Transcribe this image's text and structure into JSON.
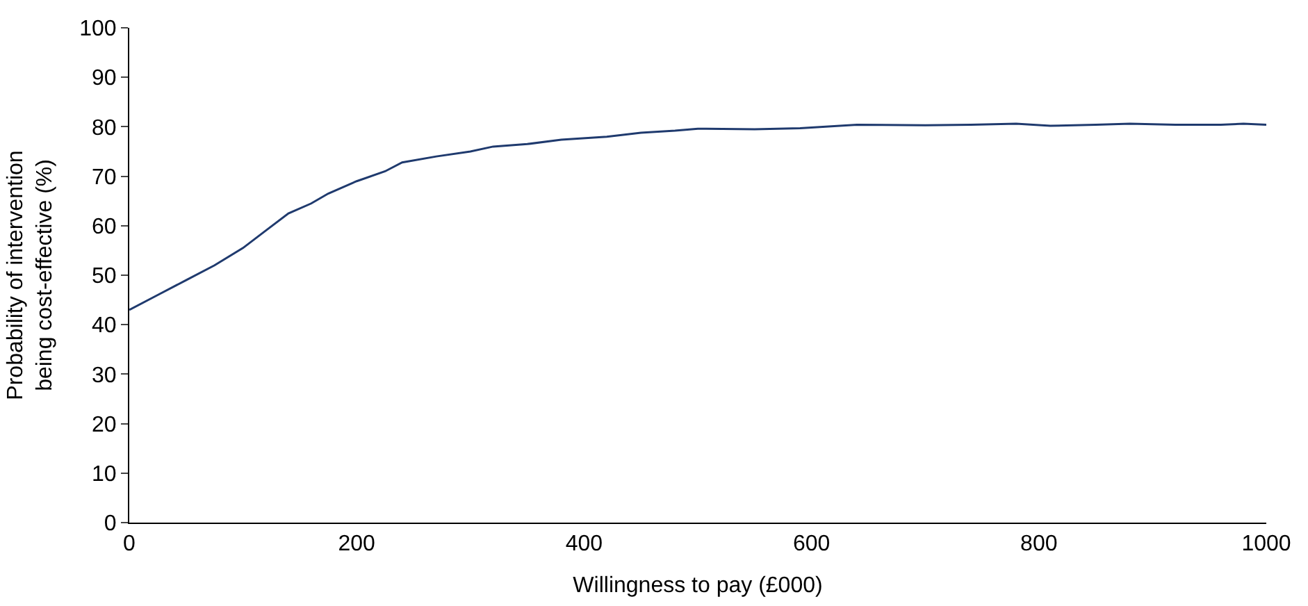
{
  "chart_data": {
    "type": "line",
    "xlabel": "Willingness to pay (£000)",
    "ylabel": "Probability of intervention\nbeing cost-effective (%)",
    "x": [
      0,
      25,
      50,
      75,
      100,
      120,
      140,
      160,
      175,
      200,
      225,
      240,
      270,
      300,
      320,
      350,
      380,
      420,
      450,
      480,
      500,
      550,
      590,
      610,
      640,
      700,
      740,
      780,
      810,
      850,
      880,
      920,
      960,
      980,
      1000
    ],
    "series": [
      {
        "color": "#1f3a6e",
        "values": [
          43,
          46,
          49,
          52,
          55.5,
          59,
          62.5,
          64.5,
          66.5,
          69,
          71,
          72.8,
          74,
          75,
          76,
          76.5,
          77.4,
          78,
          78.8,
          79.2,
          79.6,
          79.5,
          79.7,
          80,
          80.4,
          80.3,
          80.4,
          80.6,
          80.2,
          80.4,
          80.6,
          80.4,
          80.4,
          80.6,
          80.4
        ]
      }
    ],
    "xlim": [
      0,
      1000
    ],
    "xticks": [
      0,
      200,
      400,
      600,
      800,
      1000
    ],
    "ylim": [
      0,
      100
    ],
    "yticks": [
      0,
      10,
      20,
      30,
      40,
      50,
      60,
      70,
      80,
      90,
      100
    ],
    "marker": "none",
    "line_style": "solid"
  }
}
